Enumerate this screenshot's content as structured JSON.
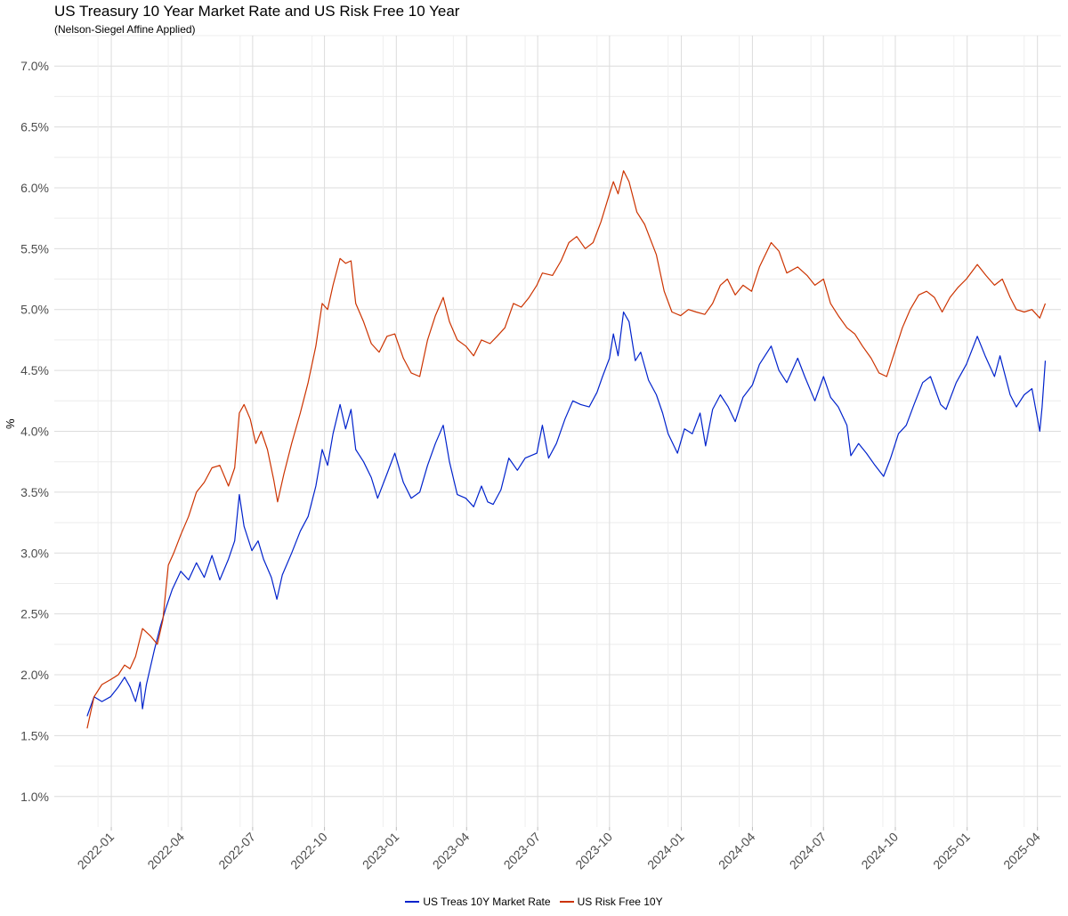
{
  "chart_data": {
    "type": "line",
    "title": "US Treasury 10 Year Market Rate and US Risk Free 10 Year",
    "subtitle": "(Nelson-Siegel Affine Applied)",
    "xlabel": "",
    "ylabel": "%",
    "ylim": [
      0.75,
      7.25
    ],
    "yticks": [
      "1.0%",
      "1.5%",
      "2.0%",
      "2.5%",
      "3.0%",
      "3.5%",
      "4.0%",
      "4.5%",
      "5.0%",
      "5.5%",
      "6.0%",
      "6.5%",
      "7.0%"
    ],
    "xticks": [
      "2022-01",
      "2022-04",
      "2022-07",
      "2022-10",
      "2023-01",
      "2023-04",
      "2023-07",
      "2023-10",
      "2024-01",
      "2024-04",
      "2024-07",
      "2024-10",
      "2025-01",
      "2025-04"
    ],
    "xlim": [
      "2021-10-20",
      "2025-05-01"
    ],
    "grid": true,
    "legend_position": "bottom",
    "series": [
      {
        "name": "US Treas 10Y Market Rate",
        "color": "#0022cc",
        "points": [
          [
            "2021-12-01",
            1.66
          ],
          [
            "2021-12-10",
            1.82
          ],
          [
            "2021-12-20",
            1.78
          ],
          [
            "2021-12-31",
            1.82
          ],
          [
            "2022-01-10",
            1.9
          ],
          [
            "2022-01-18",
            1.98
          ],
          [
            "2022-01-25",
            1.9
          ],
          [
            "2022-02-01",
            1.78
          ],
          [
            "2022-02-07",
            1.94
          ],
          [
            "2022-02-10",
            1.72
          ],
          [
            "2022-02-15",
            1.92
          ],
          [
            "2022-02-25",
            2.2
          ],
          [
            "2022-03-05",
            2.4
          ],
          [
            "2022-03-12",
            2.55
          ],
          [
            "2022-03-20",
            2.7
          ],
          [
            "2022-03-31",
            2.85
          ],
          [
            "2022-04-10",
            2.78
          ],
          [
            "2022-04-20",
            2.92
          ],
          [
            "2022-04-30",
            2.8
          ],
          [
            "2022-05-10",
            2.98
          ],
          [
            "2022-05-20",
            2.78
          ],
          [
            "2022-05-31",
            2.95
          ],
          [
            "2022-06-08",
            3.1
          ],
          [
            "2022-06-14",
            3.48
          ],
          [
            "2022-06-20",
            3.22
          ],
          [
            "2022-06-30",
            3.02
          ],
          [
            "2022-07-08",
            3.1
          ],
          [
            "2022-07-15",
            2.95
          ],
          [
            "2022-07-25",
            2.8
          ],
          [
            "2022-08-01",
            2.62
          ],
          [
            "2022-08-08",
            2.82
          ],
          [
            "2022-08-20",
            3.0
          ],
          [
            "2022-08-31",
            3.18
          ],
          [
            "2022-09-10",
            3.3
          ],
          [
            "2022-09-20",
            3.55
          ],
          [
            "2022-09-28",
            3.85
          ],
          [
            "2022-10-05",
            3.72
          ],
          [
            "2022-10-12",
            3.98
          ],
          [
            "2022-10-21",
            4.22
          ],
          [
            "2022-10-28",
            4.02
          ],
          [
            "2022-11-04",
            4.18
          ],
          [
            "2022-11-10",
            3.85
          ],
          [
            "2022-11-20",
            3.75
          ],
          [
            "2022-11-30",
            3.62
          ],
          [
            "2022-12-08",
            3.45
          ],
          [
            "2022-12-20",
            3.65
          ],
          [
            "2022-12-30",
            3.82
          ],
          [
            "2023-01-10",
            3.58
          ],
          [
            "2023-01-20",
            3.45
          ],
          [
            "2023-01-31",
            3.5
          ],
          [
            "2023-02-10",
            3.72
          ],
          [
            "2023-02-20",
            3.9
          ],
          [
            "2023-03-02",
            4.05
          ],
          [
            "2023-03-10",
            3.75
          ],
          [
            "2023-03-20",
            3.48
          ],
          [
            "2023-03-31",
            3.45
          ],
          [
            "2023-04-10",
            3.38
          ],
          [
            "2023-04-20",
            3.55
          ],
          [
            "2023-04-28",
            3.42
          ],
          [
            "2023-05-05",
            3.4
          ],
          [
            "2023-05-15",
            3.52
          ],
          [
            "2023-05-25",
            3.78
          ],
          [
            "2023-06-05",
            3.68
          ],
          [
            "2023-06-15",
            3.78
          ],
          [
            "2023-06-30",
            3.82
          ],
          [
            "2023-07-07",
            4.05
          ],
          [
            "2023-07-15",
            3.78
          ],
          [
            "2023-07-25",
            3.9
          ],
          [
            "2023-08-05",
            4.1
          ],
          [
            "2023-08-15",
            4.25
          ],
          [
            "2023-08-25",
            4.22
          ],
          [
            "2023-09-05",
            4.2
          ],
          [
            "2023-09-15",
            4.32
          ],
          [
            "2023-09-22",
            4.45
          ],
          [
            "2023-10-01",
            4.6
          ],
          [
            "2023-10-06",
            4.8
          ],
          [
            "2023-10-12",
            4.62
          ],
          [
            "2023-10-19",
            4.98
          ],
          [
            "2023-10-26",
            4.9
          ],
          [
            "2023-11-03",
            4.58
          ],
          [
            "2023-11-10",
            4.65
          ],
          [
            "2023-11-20",
            4.42
          ],
          [
            "2023-11-30",
            4.3
          ],
          [
            "2023-12-08",
            4.15
          ],
          [
            "2023-12-15",
            3.98
          ],
          [
            "2023-12-27",
            3.82
          ],
          [
            "2024-01-05",
            4.02
          ],
          [
            "2024-01-15",
            3.98
          ],
          [
            "2024-01-25",
            4.15
          ],
          [
            "2024-02-01",
            3.88
          ],
          [
            "2024-02-10",
            4.18
          ],
          [
            "2024-02-20",
            4.3
          ],
          [
            "2024-03-01",
            4.2
          ],
          [
            "2024-03-10",
            4.08
          ],
          [
            "2024-03-20",
            4.28
          ],
          [
            "2024-04-01",
            4.38
          ],
          [
            "2024-04-10",
            4.55
          ],
          [
            "2024-04-25",
            4.7
          ],
          [
            "2024-05-05",
            4.5
          ],
          [
            "2024-05-15",
            4.4
          ],
          [
            "2024-05-29",
            4.6
          ],
          [
            "2024-06-07",
            4.45
          ],
          [
            "2024-06-20",
            4.25
          ],
          [
            "2024-07-01",
            4.45
          ],
          [
            "2024-07-10",
            4.28
          ],
          [
            "2024-07-20",
            4.2
          ],
          [
            "2024-07-31",
            4.05
          ],
          [
            "2024-08-05",
            3.8
          ],
          [
            "2024-08-15",
            3.9
          ],
          [
            "2024-08-25",
            3.82
          ],
          [
            "2024-09-05",
            3.72
          ],
          [
            "2024-09-16",
            3.63
          ],
          [
            "2024-09-25",
            3.78
          ],
          [
            "2024-10-05",
            3.98
          ],
          [
            "2024-10-15",
            4.05
          ],
          [
            "2024-10-25",
            4.22
          ],
          [
            "2024-11-05",
            4.4
          ],
          [
            "2024-11-15",
            4.45
          ],
          [
            "2024-11-28",
            4.22
          ],
          [
            "2024-12-05",
            4.18
          ],
          [
            "2024-12-18",
            4.4
          ],
          [
            "2024-12-31",
            4.55
          ],
          [
            "2025-01-14",
            4.78
          ],
          [
            "2025-01-24",
            4.62
          ],
          [
            "2025-02-05",
            4.45
          ],
          [
            "2025-02-12",
            4.62
          ],
          [
            "2025-02-25",
            4.3
          ],
          [
            "2025-03-05",
            4.2
          ],
          [
            "2025-03-15",
            4.3
          ],
          [
            "2025-03-25",
            4.35
          ],
          [
            "2025-04-04",
            4.0
          ],
          [
            "2025-04-07",
            4.2
          ],
          [
            "2025-04-11",
            4.58
          ]
        ]
      },
      {
        "name": "US Risk Free 10Y",
        "color": "#cc3300",
        "points": [
          [
            "2021-12-01",
            1.56
          ],
          [
            "2021-12-10",
            1.82
          ],
          [
            "2021-12-20",
            1.92
          ],
          [
            "2021-12-31",
            1.96
          ],
          [
            "2022-01-10",
            2.0
          ],
          [
            "2022-01-18",
            2.08
          ],
          [
            "2022-01-25",
            2.05
          ],
          [
            "2022-02-01",
            2.15
          ],
          [
            "2022-02-10",
            2.38
          ],
          [
            "2022-02-20",
            2.32
          ],
          [
            "2022-03-01",
            2.25
          ],
          [
            "2022-03-08",
            2.45
          ],
          [
            "2022-03-15",
            2.9
          ],
          [
            "2022-03-22",
            3.0
          ],
          [
            "2022-03-31",
            3.15
          ],
          [
            "2022-04-10",
            3.3
          ],
          [
            "2022-04-20",
            3.5
          ],
          [
            "2022-04-30",
            3.58
          ],
          [
            "2022-05-10",
            3.7
          ],
          [
            "2022-05-20",
            3.72
          ],
          [
            "2022-05-31",
            3.55
          ],
          [
            "2022-06-08",
            3.7
          ],
          [
            "2022-06-14",
            4.15
          ],
          [
            "2022-06-20",
            4.22
          ],
          [
            "2022-06-28",
            4.1
          ],
          [
            "2022-07-05",
            3.9
          ],
          [
            "2022-07-12",
            4.0
          ],
          [
            "2022-07-20",
            3.85
          ],
          [
            "2022-07-28",
            3.6
          ],
          [
            "2022-08-02",
            3.42
          ],
          [
            "2022-08-10",
            3.65
          ],
          [
            "2022-08-20",
            3.9
          ],
          [
            "2022-08-31",
            4.15
          ],
          [
            "2022-09-10",
            4.4
          ],
          [
            "2022-09-20",
            4.7
          ],
          [
            "2022-09-28",
            5.05
          ],
          [
            "2022-10-05",
            5.0
          ],
          [
            "2022-10-12",
            5.2
          ],
          [
            "2022-10-21",
            5.42
          ],
          [
            "2022-10-28",
            5.38
          ],
          [
            "2022-11-04",
            5.4
          ],
          [
            "2022-11-10",
            5.05
          ],
          [
            "2022-11-20",
            4.9
          ],
          [
            "2022-11-30",
            4.72
          ],
          [
            "2022-12-10",
            4.65
          ],
          [
            "2022-12-20",
            4.78
          ],
          [
            "2022-12-30",
            4.8
          ],
          [
            "2023-01-10",
            4.6
          ],
          [
            "2023-01-20",
            4.48
          ],
          [
            "2023-01-31",
            4.45
          ],
          [
            "2023-02-10",
            4.75
          ],
          [
            "2023-02-20",
            4.95
          ],
          [
            "2023-03-02",
            5.1
          ],
          [
            "2023-03-10",
            4.9
          ],
          [
            "2023-03-20",
            4.75
          ],
          [
            "2023-03-31",
            4.7
          ],
          [
            "2023-04-10",
            4.62
          ],
          [
            "2023-04-20",
            4.75
          ],
          [
            "2023-05-01",
            4.72
          ],
          [
            "2023-05-10",
            4.78
          ],
          [
            "2023-05-20",
            4.85
          ],
          [
            "2023-05-31",
            5.05
          ],
          [
            "2023-06-10",
            5.02
          ],
          [
            "2023-06-20",
            5.1
          ],
          [
            "2023-06-30",
            5.2
          ],
          [
            "2023-07-07",
            5.3
          ],
          [
            "2023-07-20",
            5.28
          ],
          [
            "2023-07-31",
            5.4
          ],
          [
            "2023-08-10",
            5.55
          ],
          [
            "2023-08-20",
            5.6
          ],
          [
            "2023-08-31",
            5.5
          ],
          [
            "2023-09-10",
            5.55
          ],
          [
            "2023-09-20",
            5.72
          ],
          [
            "2023-10-01",
            5.95
          ],
          [
            "2023-10-06",
            6.05
          ],
          [
            "2023-10-12",
            5.95
          ],
          [
            "2023-10-19",
            6.14
          ],
          [
            "2023-10-26",
            6.05
          ],
          [
            "2023-11-05",
            5.8
          ],
          [
            "2023-11-15",
            5.7
          ],
          [
            "2023-11-30",
            5.45
          ],
          [
            "2023-12-10",
            5.15
          ],
          [
            "2023-12-20",
            4.98
          ],
          [
            "2023-12-31",
            4.95
          ],
          [
            "2024-01-10",
            5.0
          ],
          [
            "2024-01-20",
            4.98
          ],
          [
            "2024-01-31",
            4.96
          ],
          [
            "2024-02-10",
            5.05
          ],
          [
            "2024-02-20",
            5.2
          ],
          [
            "2024-02-29",
            5.25
          ],
          [
            "2024-03-10",
            5.12
          ],
          [
            "2024-03-20",
            5.2
          ],
          [
            "2024-03-31",
            5.15
          ],
          [
            "2024-04-10",
            5.35
          ],
          [
            "2024-04-25",
            5.55
          ],
          [
            "2024-05-05",
            5.48
          ],
          [
            "2024-05-15",
            5.3
          ],
          [
            "2024-05-29",
            5.35
          ],
          [
            "2024-06-10",
            5.28
          ],
          [
            "2024-06-20",
            5.2
          ],
          [
            "2024-07-01",
            5.25
          ],
          [
            "2024-07-10",
            5.05
          ],
          [
            "2024-07-20",
            4.95
          ],
          [
            "2024-07-31",
            4.85
          ],
          [
            "2024-08-10",
            4.8
          ],
          [
            "2024-08-20",
            4.7
          ],
          [
            "2024-08-31",
            4.6
          ],
          [
            "2024-09-10",
            4.48
          ],
          [
            "2024-09-20",
            4.45
          ],
          [
            "2024-09-30",
            4.65
          ],
          [
            "2024-10-10",
            4.85
          ],
          [
            "2024-10-20",
            5.0
          ],
          [
            "2024-10-31",
            5.12
          ],
          [
            "2024-11-10",
            5.15
          ],
          [
            "2024-11-20",
            5.1
          ],
          [
            "2024-11-30",
            4.98
          ],
          [
            "2024-12-10",
            5.1
          ],
          [
            "2024-12-20",
            5.18
          ],
          [
            "2024-12-31",
            5.25
          ],
          [
            "2025-01-14",
            5.37
          ],
          [
            "2025-01-25",
            5.28
          ],
          [
            "2025-02-05",
            5.2
          ],
          [
            "2025-02-15",
            5.25
          ],
          [
            "2025-02-25",
            5.1
          ],
          [
            "2025-03-05",
            5.0
          ],
          [
            "2025-03-15",
            4.98
          ],
          [
            "2025-03-25",
            5.0
          ],
          [
            "2025-04-04",
            4.93
          ],
          [
            "2025-04-07",
            4.98
          ],
          [
            "2025-04-11",
            5.05
          ]
        ]
      }
    ]
  }
}
